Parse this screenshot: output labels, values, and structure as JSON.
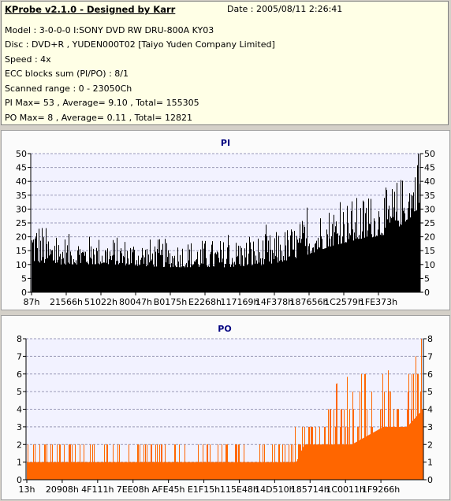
{
  "header": {
    "title": "KProbe v2.1.0 - Designed by Karr",
    "date": "Date : 2005/08/11 2:26:41",
    "lines": [
      "Model : 3-0-0-0 I:SONY    DVD RW DRU-800A  KY03",
      "Disc : DVD+R , YUDEN000T02 [Taiyo Yuden Company Limited]",
      "Speed : 4x",
      "ECC blocks sum (PI/PO) : 8/1",
      "Scanned range : 0 - 23050Ch",
      "PI Max= 53 , Average= 9.10 , Total= 155305",
      "PO Max= 8 , Average= 0.11 , Total= 12821"
    ]
  },
  "chart_data": [
    {
      "type": "bar",
      "title": "PI",
      "color": "#000000",
      "ylim": [
        0,
        50
      ],
      "yticks": [
        0,
        5,
        10,
        15,
        20,
        25,
        30,
        35,
        40,
        45,
        50
      ],
      "xtick_labels": [
        "87h",
        "21566h",
        "51022h",
        "80047h",
        "B0175h",
        "E2268h",
        "117169h",
        "14F378h",
        "187656h",
        "1C2579h",
        "1FE373h"
      ],
      "grid": true,
      "profile": [
        {
          "x": 0.0,
          "base": 11,
          "peak": 28
        },
        {
          "x": 0.05,
          "base": 10,
          "peak": 20
        },
        {
          "x": 0.2,
          "base": 10,
          "peak": 19
        },
        {
          "x": 0.35,
          "base": 9,
          "peak": 18
        },
        {
          "x": 0.5,
          "base": 9,
          "peak": 18
        },
        {
          "x": 0.62,
          "base": 10,
          "peak": 20
        },
        {
          "x": 0.7,
          "base": 13,
          "peak": 25
        },
        {
          "x": 0.78,
          "base": 17,
          "peak": 31
        },
        {
          "x": 0.85,
          "base": 19,
          "peak": 33
        },
        {
          "x": 0.92,
          "base": 21,
          "peak": 36
        },
        {
          "x": 0.97,
          "base": 26,
          "peak": 42
        },
        {
          "x": 1.0,
          "base": 31,
          "peak": 48
        }
      ],
      "max": 53
    },
    {
      "type": "bar",
      "title": "PO",
      "color": "#ff6600",
      "ylim": [
        0,
        8
      ],
      "yticks": [
        0,
        1,
        2,
        3,
        4,
        5,
        6,
        7,
        8
      ],
      "xtick_labels": [
        "13h",
        "20908h",
        "4F111h",
        "7EE08h",
        "AFE45h",
        "E1F15h",
        "115E48h",
        "14D510h",
        "185714h",
        "1C0011h",
        "1F9266h"
      ],
      "grid": true,
      "profile": [
        {
          "x": 0.0,
          "base": 1,
          "peak": 2
        },
        {
          "x": 0.6,
          "base": 1,
          "peak": 2
        },
        {
          "x": 0.68,
          "base": 1,
          "peak": 3
        },
        {
          "x": 0.7,
          "base": 2,
          "peak": 3
        },
        {
          "x": 0.75,
          "base": 2,
          "peak": 4
        },
        {
          "x": 0.82,
          "base": 2,
          "peak": 5
        },
        {
          "x": 0.9,
          "base": 3,
          "peak": 5
        },
        {
          "x": 0.96,
          "base": 3,
          "peak": 6
        },
        {
          "x": 1.0,
          "base": 4,
          "peak": 7
        }
      ],
      "max": 8
    }
  ]
}
